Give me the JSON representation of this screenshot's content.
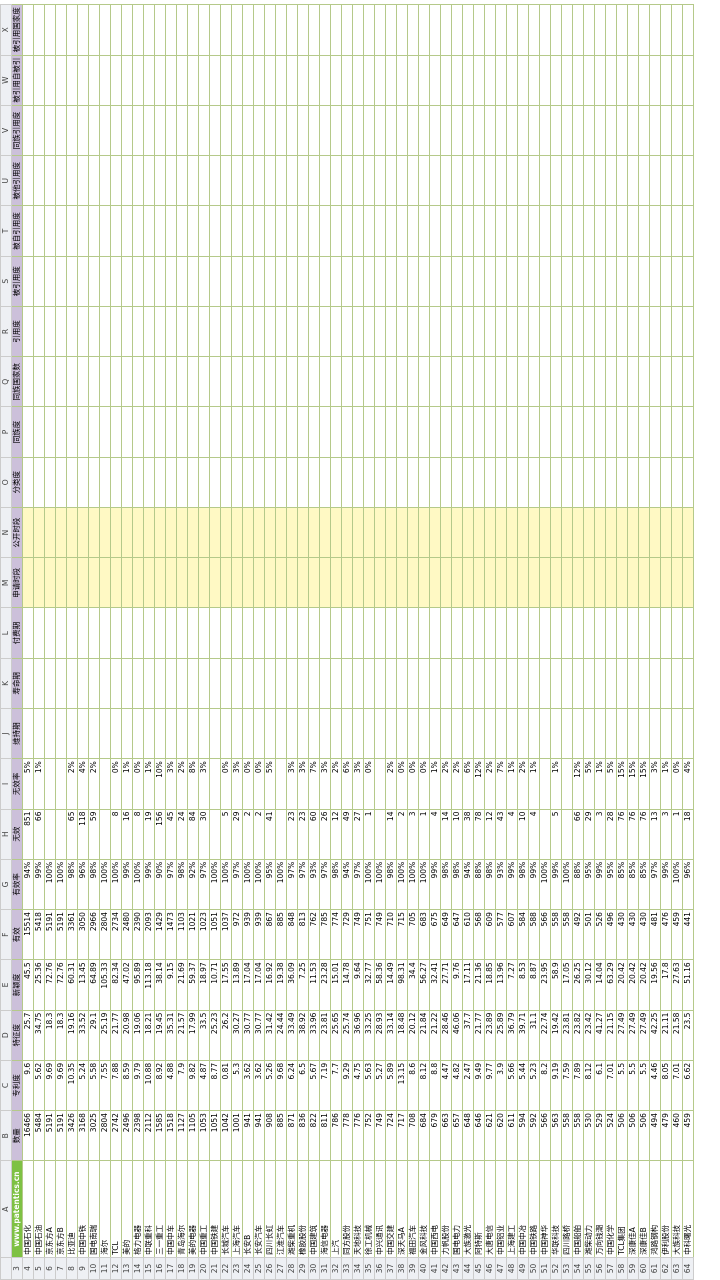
{
  "sheet": {
    "column_letters": [
      "A",
      "B",
      "C",
      "D",
      "E",
      "F",
      "G",
      "H",
      "I",
      "J",
      "K",
      "L",
      "M",
      "N",
      "O",
      "P",
      "Q",
      "R",
      "S",
      "T",
      "U",
      "V",
      "W",
      "X"
    ],
    "header_row": "3",
    "headers": [
      "www.patentics.cn",
      "数量",
      "专利度",
      "特征度",
      "新颖度",
      "有效",
      "有效率",
      "无效",
      "无效率",
      "维持期",
      "寿命期",
      "付费期",
      "申请时段",
      "公开时段",
      "分类度",
      "同族度",
      "同族国家数",
      "引用度",
      "被引用度",
      "被自引用度",
      "被他引用度",
      "同族引用度",
      "被引用自被引",
      "被引用国家度"
    ],
    "rows": [
      [
        "4",
        "中国石化",
        "16466",
        "9.6",
        "25.7",
        "45.5",
        "15514",
        "94%",
        "851",
        "5%"
      ],
      [
        "5",
        "中国石油",
        "5484",
        "5.62",
        "34.75",
        "25.36",
        "5418",
        "99%",
        "66",
        "1%"
      ],
      [
        "6",
        "京东方A",
        "5191",
        "9.69",
        "18.3",
        "72.76",
        "5191",
        "100%"
      ],
      [
        "7",
        "京东方B",
        "5191",
        "9.69",
        "18.3",
        "72.76",
        "5191",
        "100%"
      ],
      [
        "8",
        "比亚迪",
        "3426",
        "10.35",
        "19.16",
        "60.31",
        "3361",
        "98%",
        "65",
        "2%"
      ],
      [
        "9",
        "中国中铁",
        "3168",
        "5.24",
        "33.52",
        "13.45",
        "3050",
        "96%",
        "118",
        "4%"
      ],
      [
        "10",
        "国电南瑞",
        "3025",
        "5.58",
        "29.1",
        "64.89",
        "2966",
        "98%",
        "59",
        "2%"
      ],
      [
        "11",
        "海尔",
        "2804",
        "7.55",
        "25.19",
        "105.33",
        "2804",
        "100%"
      ],
      [
        "12",
        "TCL",
        "2742",
        "7.88",
        "21.77",
        "82.34",
        "2734",
        "100%",
        "8",
        "0%"
      ],
      [
        "13",
        "美的",
        "2496",
        "8.59",
        "20.98",
        "47.02",
        "2480",
        "99%",
        "16",
        "1%"
      ],
      [
        "14",
        "格力电器",
        "2398",
        "9.79",
        "19.06",
        "95.89",
        "2390",
        "100%",
        "8",
        "0%"
      ],
      [
        "15",
        "中联重科",
        "2112",
        "10.88",
        "18.21",
        "113.18",
        "2093",
        "99%",
        "19",
        "1%"
      ],
      [
        "16",
        "三一重工",
        "1585",
        "8.92",
        "19.45",
        "38.14",
        "1429",
        "90%",
        "156",
        "10%"
      ],
      [
        "17",
        "中国中车",
        "1518",
        "4.88",
        "35.31",
        "9.15",
        "1473",
        "97%",
        "45",
        "3%"
      ],
      [
        "18",
        "青岛海尔",
        "1127",
        "7.9",
        "21.57",
        "21.69",
        "1103",
        "98%",
        "24",
        "2%"
      ],
      [
        "19",
        "美的电器",
        "1105",
        "9.82",
        "17.99",
        "59.37",
        "1021",
        "92%",
        "84",
        "8%"
      ],
      [
        "20",
        "中国重工",
        "1053",
        "4.87",
        "33.5",
        "18.97",
        "1023",
        "97%",
        "30",
        "3%"
      ],
      [
        "21",
        "中国铁建",
        "1051",
        "8.77",
        "25.23",
        "10.71",
        "1051",
        "100%"
      ],
      [
        "22",
        "长城汽车",
        "1042",
        "0.81",
        "26.2",
        "17.55",
        "1037",
        "100%",
        "5",
        "0%"
      ],
      [
        "23",
        "上海汽车",
        "1001",
        "5.3",
        "30.27",
        "13.89",
        "972",
        "97%",
        "29",
        "3%"
      ],
      [
        "24",
        "长安B",
        "941",
        "3.62",
        "30.77",
        "17.04",
        "939",
        "100%",
        "2",
        "0%"
      ],
      [
        "25",
        "长安汽车",
        "941",
        "3.62",
        "30.77",
        "17.04",
        "939",
        "100%",
        "2",
        "0%"
      ],
      [
        "26",
        "四川长虹",
        "908",
        "5.26",
        "31.42",
        "16.92",
        "867",
        "95%",
        "41",
        "5%"
      ],
      [
        "27",
        "江淮汽车",
        "885",
        "9.68",
        "24.44",
        "19.38",
        "885",
        "100%"
      ],
      [
        "28",
        "潍柴重机",
        "871",
        "6.24",
        "33.49",
        "36.09",
        "848",
        "97%",
        "23",
        "3%"
      ],
      [
        "29",
        "橡胶股份",
        "836",
        "6.5",
        "38.92",
        "7.25",
        "813",
        "97%",
        "23",
        "3%"
      ],
      [
        "30",
        "中国建筑",
        "822",
        "5.67",
        "33.96",
        "11.53",
        "762",
        "93%",
        "60",
        "7%"
      ],
      [
        "31",
        "海信电器",
        "811",
        "7.19",
        "23.81",
        "23.28",
        "785",
        "97%",
        "26",
        "3%"
      ],
      [
        "32",
        "上汽",
        "786",
        "7.7",
        "25.65",
        "15.01",
        "774",
        "98%",
        "12",
        "2%"
      ],
      [
        "33",
        "同方股份",
        "778",
        "9.29",
        "25.74",
        "14.78",
        "729",
        "94%",
        "49",
        "6%"
      ],
      [
        "34",
        "天地科技",
        "776",
        "4.75",
        "36.96",
        "9.64",
        "749",
        "97%",
        "27",
        "3%"
      ],
      [
        "35",
        "徐工机械",
        "752",
        "5.63",
        "33.25",
        "32.77",
        "751",
        "100%",
        "1",
        "0%"
      ],
      [
        "36",
        "中兴通讯",
        "749",
        "5.27",
        "28.93",
        "58.36",
        "749",
        "100%"
      ],
      [
        "37",
        "中国交建",
        "724",
        "5.89",
        "33.14",
        "14.49",
        "710",
        "98%",
        "14",
        "2%"
      ],
      [
        "38",
        "深天马A",
        "717",
        "13.15",
        "18.48",
        "98.31",
        "715",
        "100%",
        "2",
        "0%"
      ],
      [
        "39",
        "福田汽车",
        "708",
        "8.6",
        "20.12",
        "34.4",
        "705",
        "100%",
        "3",
        "0%"
      ],
      [
        "40",
        "金风科技",
        "684",
        "8.12",
        "21.84",
        "56.27",
        "683",
        "100%",
        "1",
        "0%"
      ],
      [
        "41",
        "中国西电",
        "679",
        "8.8",
        "21.22",
        "32.41",
        "675",
        "99%",
        "4",
        "1%"
      ],
      [
        "42",
        "力帆股份",
        "663",
        "4.47",
        "28.46",
        "27.71",
        "649",
        "98%",
        "14",
        "2%"
      ],
      [
        "43",
        "国电电力",
        "657",
        "4.82",
        "46.06",
        "9.76",
        "647",
        "98%",
        "10",
        "2%"
      ],
      [
        "44",
        "大族激光",
        "648",
        "2.47",
        "37.7",
        "17.11",
        "610",
        "94%",
        "38",
        "6%"
      ],
      [
        "45",
        "阿特斯",
        "646",
        "9.49",
        "21.77",
        "21.36",
        "568",
        "88%",
        "78",
        "12%"
      ],
      [
        "46",
        "大唐电信",
        "621",
        "9.77",
        "23.89",
        "18.85",
        "609",
        "98%",
        "12",
        "2%"
      ],
      [
        "47",
        "中国铝业",
        "620",
        "3.9",
        "25.89",
        "13.96",
        "577",
        "93%",
        "43",
        "7%"
      ],
      [
        "48",
        "上海建工",
        "611",
        "5.66",
        "36.79",
        "7.27",
        "607",
        "99%",
        "4",
        "1%"
      ],
      [
        "49",
        "中国中冶",
        "594",
        "5.44",
        "39.71",
        "8.53",
        "584",
        "98%",
        "10",
        "2%"
      ],
      [
        "50",
        "中国铁路",
        "592",
        "5.23",
        "31.1",
        "8.87",
        "588",
        "99%",
        "4",
        "1%"
      ],
      [
        "51",
        "中国神华",
        "566",
        "8.2",
        "22.74",
        "23.95",
        "566",
        "100%"
      ],
      [
        "52",
        "华联科技",
        "563",
        "9.19",
        "19.42",
        "58.9",
        "558",
        "99%",
        "5",
        "1%"
      ],
      [
        "53",
        "四川路桥",
        "558",
        "7.59",
        "23.81",
        "17.05",
        "558",
        "100%"
      ],
      [
        "54",
        "中国船舶",
        "558",
        "7.89",
        "23.82",
        "26.25",
        "492",
        "88%",
        "66",
        "12%"
      ],
      [
        "55",
        "潍柴动力",
        "530",
        "8.12",
        "23.42",
        "30.12",
        "501",
        "95%",
        "29",
        "5%"
      ],
      [
        "56",
        "万向钱潮",
        "529",
        "6.1",
        "41.27",
        "14.04",
        "526",
        "99%",
        "3",
        "1%"
      ],
      [
        "57",
        "中国化学",
        "524",
        "7.01",
        "21.15",
        "63.29",
        "496",
        "95%",
        "28",
        "5%"
      ],
      [
        "58",
        "TCL集团",
        "506",
        "5.5",
        "27.49",
        "20.42",
        "430",
        "85%",
        "76",
        "15%"
      ],
      [
        "59",
        "深康佳A",
        "506",
        "5.5",
        "27.49",
        "20.42",
        "430",
        "85%",
        "76",
        "15%"
      ],
      [
        "60",
        "深康佳B",
        "506",
        "5.5",
        "27.49",
        "20.42",
        "430",
        "85%",
        "76",
        "15%"
      ],
      [
        "61",
        "鸿路钢构",
        "494",
        "4.46",
        "42.25",
        "19.56",
        "481",
        "97%",
        "13",
        "3%"
      ],
      [
        "62",
        "伊利股份",
        "479",
        "8.05",
        "21.11",
        "17.8",
        "476",
        "99%",
        "3",
        "1%"
      ],
      [
        "63",
        "大族科技",
        "460",
        "7.01",
        "21.58",
        "27.63",
        "459",
        "100%",
        "1",
        "0%"
      ],
      [
        "64",
        "中科曙光",
        "459",
        "6.62",
        "23.5",
        "51.16",
        "441",
        "96%",
        "18",
        "4%"
      ]
    ]
  }
}
